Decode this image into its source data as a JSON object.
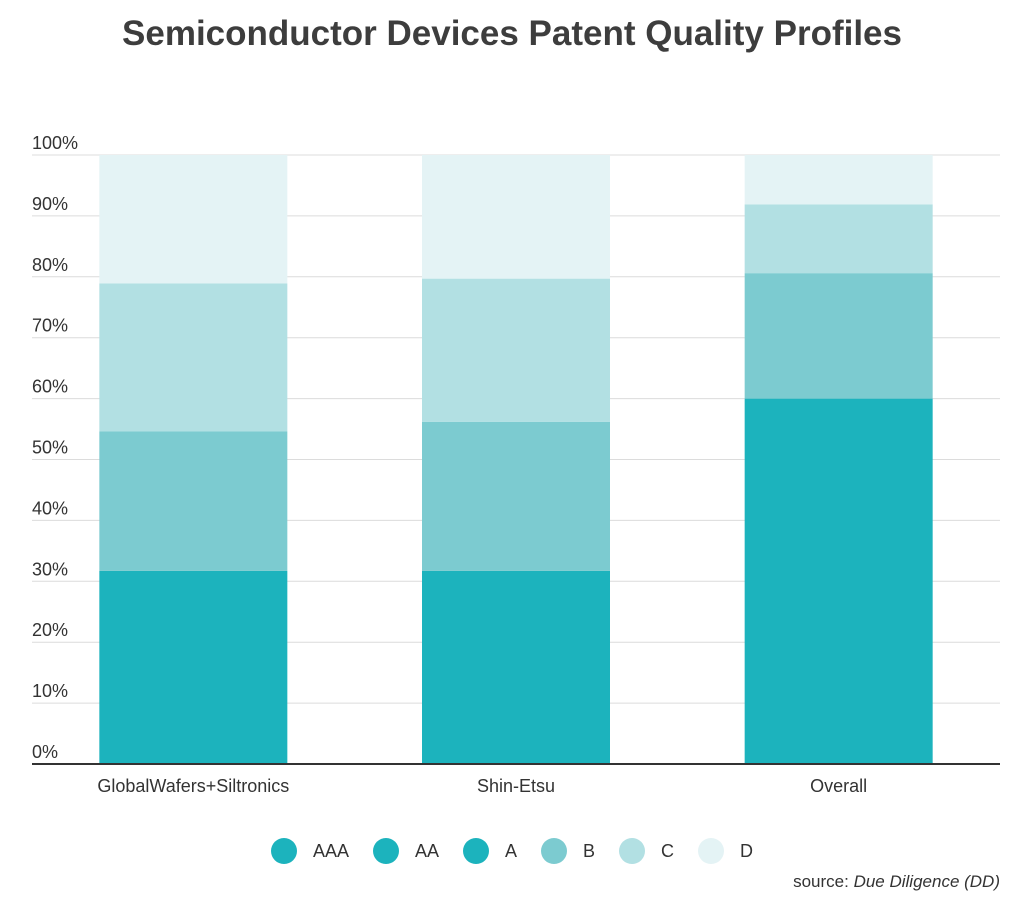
{
  "chart_data": {
    "type": "bar",
    "stacked": true,
    "title": "Semiconductor Devices Patent Quality Profiles",
    "categories": [
      "GlobalWafers+Siltronics",
      "Shin-Etsu",
      "Overall"
    ],
    "series": [
      {
        "name": "AAA",
        "color": "#1cb3bd",
        "values": [
          0,
          0,
          0
        ]
      },
      {
        "name": "AA",
        "color": "#1cb3bd",
        "values": [
          0,
          0,
          0
        ]
      },
      {
        "name": "A",
        "color": "#1cb3bd",
        "values": [
          31.7,
          31.7,
          60
        ]
      },
      {
        "name": "B",
        "color": "#7ccbd0",
        "values": [
          22.9,
          24.5,
          20.6
        ]
      },
      {
        "name": "C",
        "color": "#b2e0e3",
        "values": [
          24.3,
          23.5,
          11.3
        ]
      },
      {
        "name": "D",
        "color": "#e4f3f5",
        "values": [
          21.1,
          20.3,
          8.1
        ]
      }
    ],
    "ylim": [
      0,
      100
    ],
    "yticks": [
      "0%",
      "10%",
      "20%",
      "30%",
      "40%",
      "50%",
      "60%",
      "70%",
      "80%",
      "90%",
      "100%"
    ],
    "xlabel": "",
    "ylabel": "",
    "grid": true,
    "legend_position": "bottom"
  },
  "source": {
    "prefix": "source: ",
    "name": "Due Diligence (DD)"
  }
}
